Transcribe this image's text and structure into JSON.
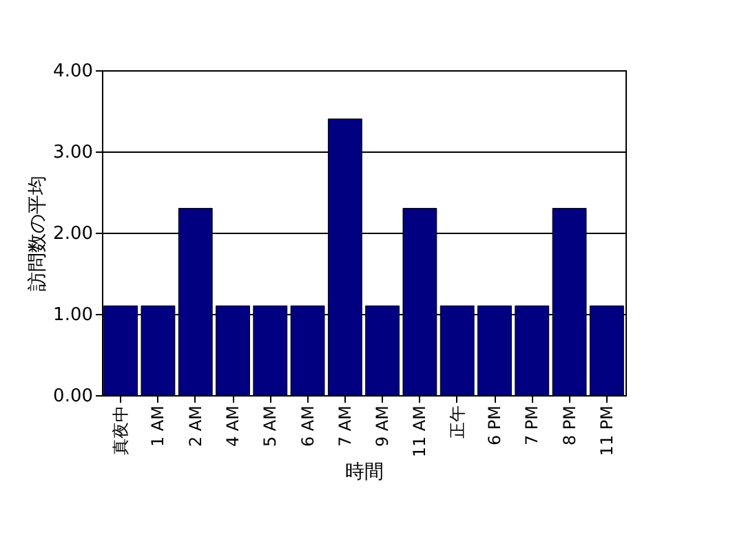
{
  "chart_data": {
    "type": "bar",
    "xlabel": "時間",
    "ylabel": "訪問数の平均",
    "categories": [
      "真夜中",
      "1 AM",
      "2 AM",
      "4 AM",
      "5 AM",
      "6 AM",
      "7 AM",
      "9 AM",
      "11 AM",
      "正午",
      "6 PM",
      "7 PM",
      "8 PM",
      "11 PM"
    ],
    "values": [
      1.1,
      1.1,
      2.3,
      1.1,
      1.1,
      1.1,
      3.4,
      1.1,
      2.3,
      1.1,
      1.1,
      1.1,
      2.3,
      1.1
    ],
    "color": "#000080",
    "ylim": [
      0,
      4
    ],
    "yticks": [
      {
        "value": 0,
        "label": "0.00"
      },
      {
        "value": 1,
        "label": "1.00"
      },
      {
        "value": 2,
        "label": "2.00"
      },
      {
        "value": 3,
        "label": "3.00"
      },
      {
        "value": 4,
        "label": "4.00"
      }
    ],
    "grid": "y"
  }
}
